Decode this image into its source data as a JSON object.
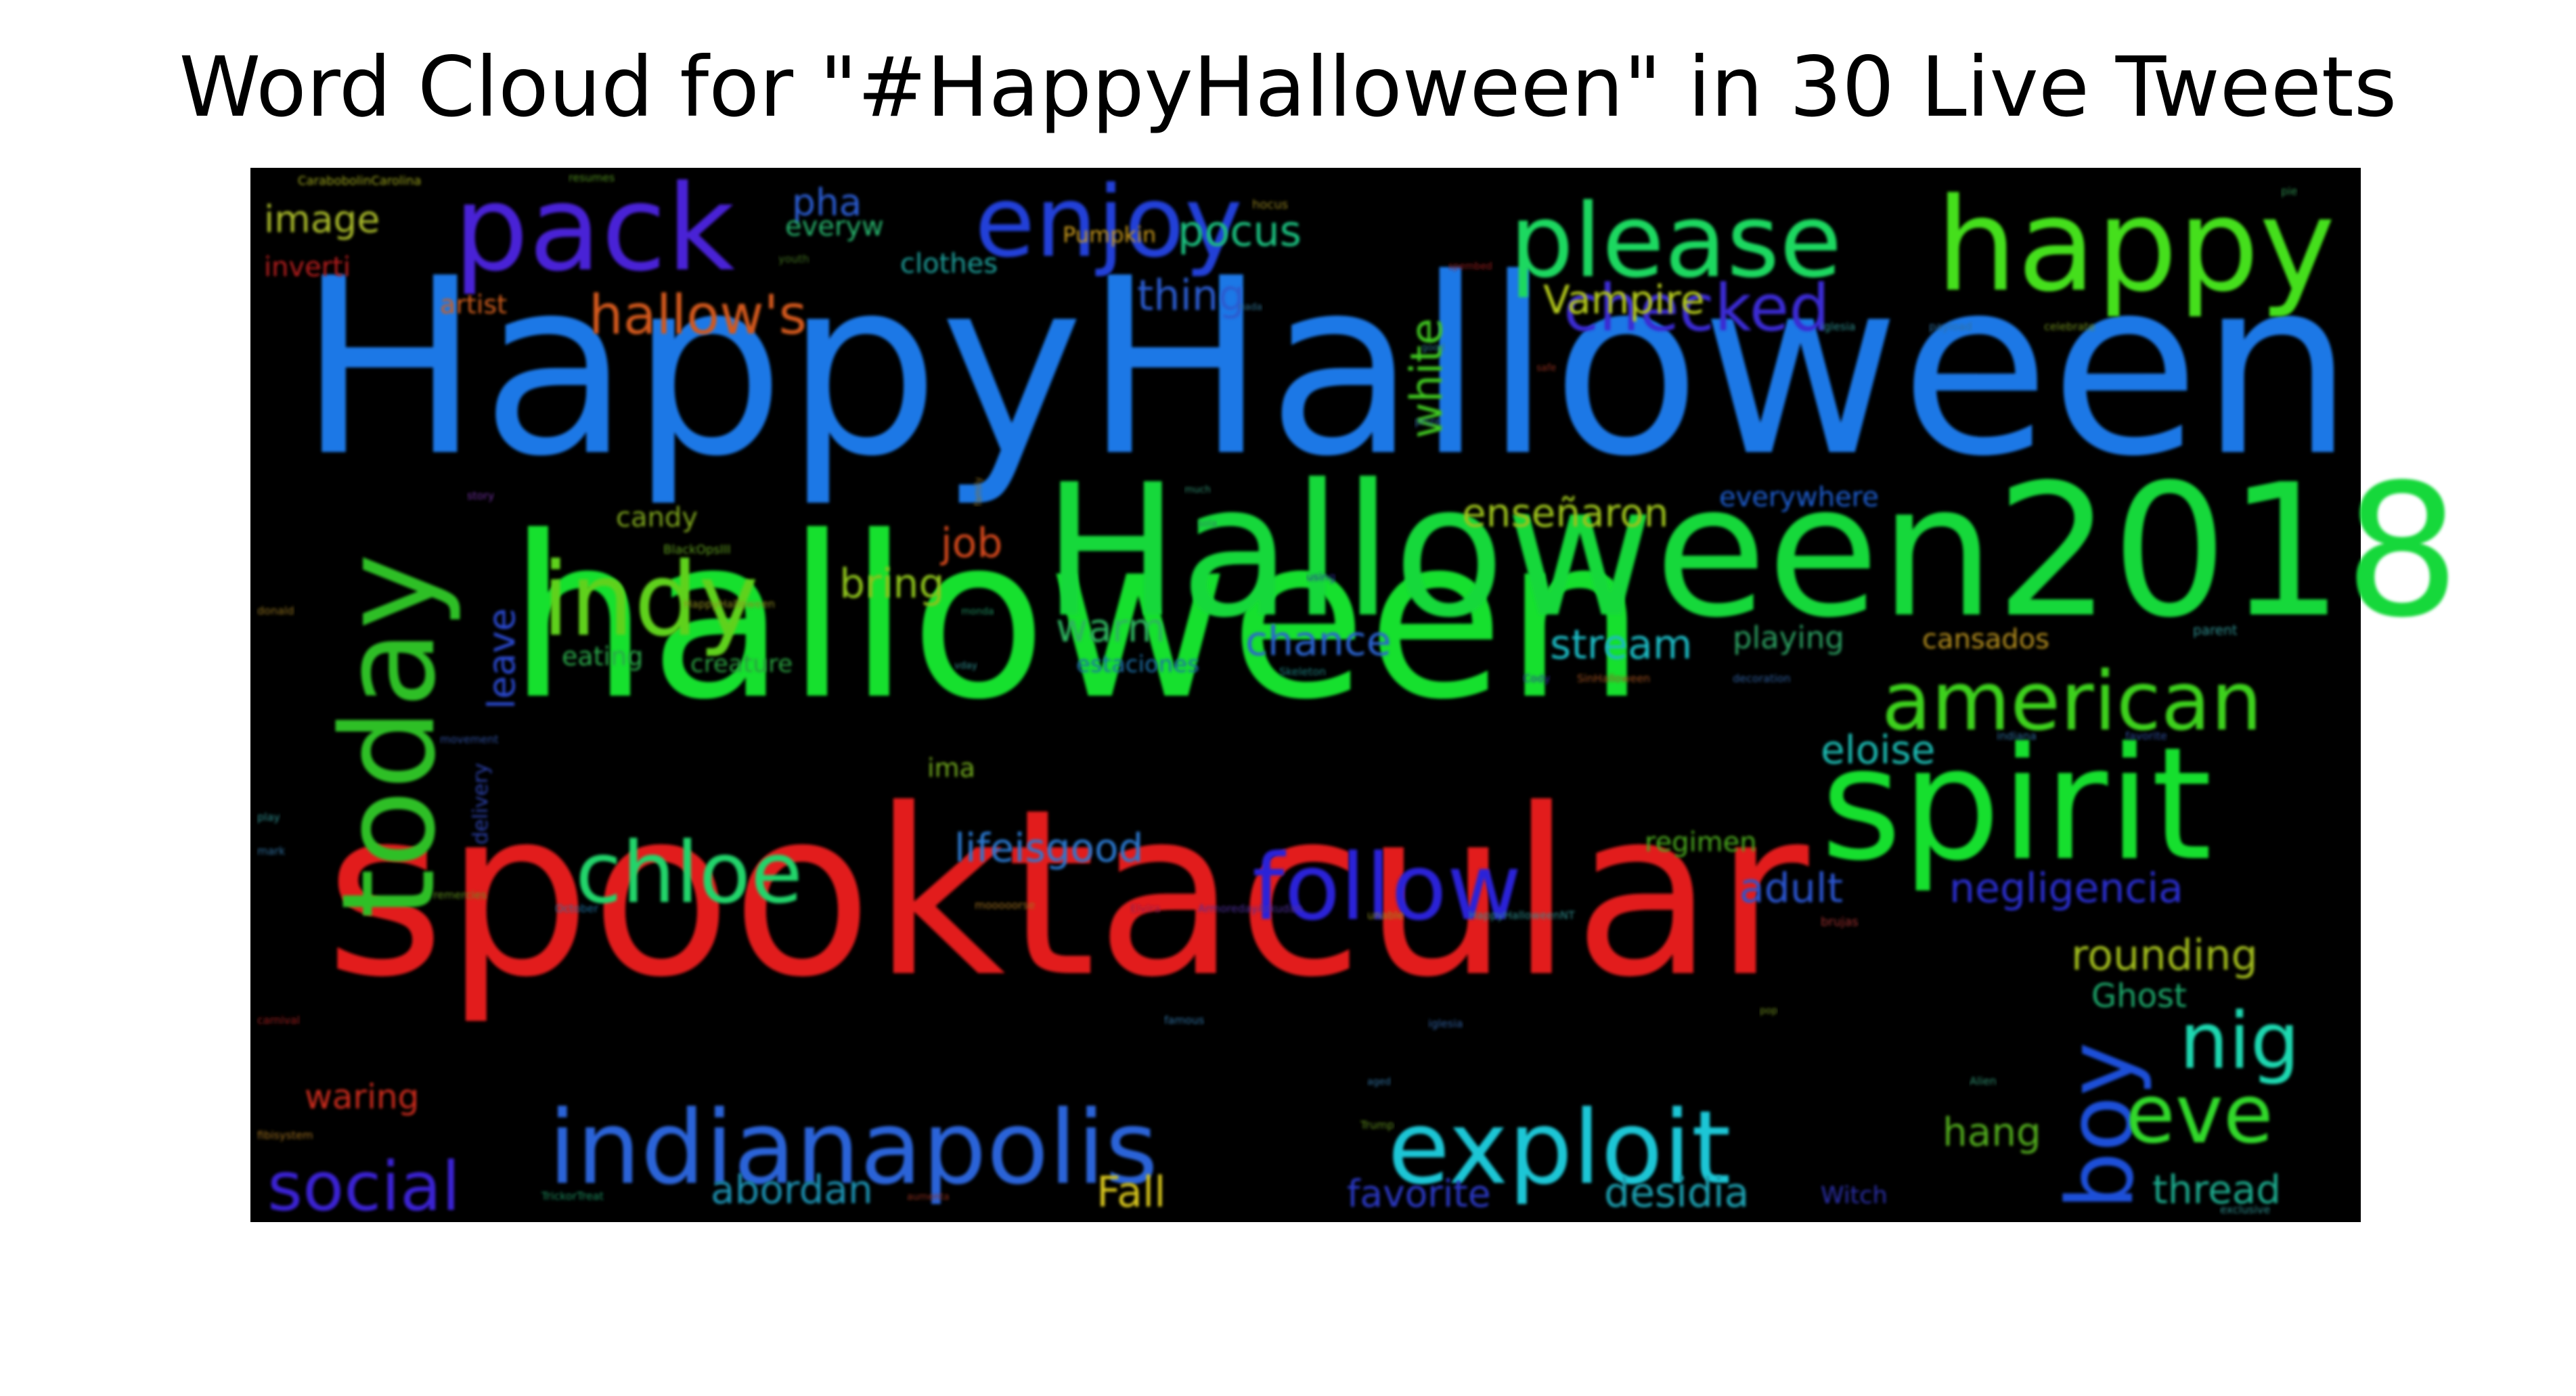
{
  "chart_data": {
    "type": "wordcloud",
    "title": "Word Cloud for \"#HappyHalloween\" in 30 Live Tweets",
    "background_color": "#000000",
    "words": [
      {
        "text": "HappyHalloween",
        "color": "#1a78e6"
      },
      {
        "text": "halloween",
        "color": "#18e02e"
      },
      {
        "text": "spooktacular",
        "color": "#e21b1b"
      },
      {
        "text": "Halloween2018",
        "color": "#18d83a"
      },
      {
        "text": "spirit",
        "color": "#18df2f"
      },
      {
        "text": "happy",
        "color": "#45df1c"
      },
      {
        "text": "today",
        "color": "#2fbf27"
      },
      {
        "text": "please",
        "color": "#1fd860"
      },
      {
        "text": "pack",
        "color": "#4a22d6"
      },
      {
        "text": "enjoy",
        "color": "#2140d8"
      },
      {
        "text": "indy",
        "color": "#5ed11f"
      },
      {
        "text": "indianapolis",
        "color": "#2a64d8"
      },
      {
        "text": "exploit",
        "color": "#1ec6d6"
      },
      {
        "text": "american",
        "color": "#3cd11f"
      },
      {
        "text": "follow",
        "color": "#2a23d8"
      },
      {
        "text": "chloe",
        "color": "#22d46a"
      },
      {
        "text": "boy",
        "color": "#1d4fd8"
      },
      {
        "text": "nig",
        "color": "#1dd8b0"
      },
      {
        "text": "eve",
        "color": "#30d82a"
      },
      {
        "text": "social",
        "color": "#3a22d2"
      },
      {
        "text": "checked",
        "color": "#3a2ad2"
      },
      {
        "text": "hallow's",
        "color": "#d2581c"
      },
      {
        "text": "white",
        "color": "#3fc620"
      },
      {
        "text": "pocus",
        "color": "#1abf7f"
      },
      {
        "text": "thing",
        "color": "#2a5bcf"
      },
      {
        "text": "Vampire",
        "color": "#b3c91f"
      },
      {
        "text": "pha",
        "color": "#2a5bcf"
      },
      {
        "text": "everyw",
        "color": "#28b06a"
      },
      {
        "text": "clothes",
        "color": "#1d9f9a"
      },
      {
        "text": "image",
        "color": "#a8b92a"
      },
      {
        "text": "inverti",
        "color": "#b51b1b"
      },
      {
        "text": "artist",
        "color": "#cf5d1c"
      },
      {
        "text": "Pumpkin",
        "color": "#c99a1e"
      },
      {
        "text": "enseñaron",
        "color": "#9cc21f"
      },
      {
        "text": "everywhere",
        "color": "#1f5dcf"
      },
      {
        "text": "job",
        "color": "#d0461c"
      },
      {
        "text": "bring",
        "color": "#8dc21f"
      },
      {
        "text": "chance",
        "color": "#2a63cf"
      },
      {
        "text": "stream",
        "color": "#1fb9c2"
      },
      {
        "text": "warm",
        "color": "#2fb35f"
      },
      {
        "text": "playing",
        "color": "#2a9b5f"
      },
      {
        "text": "cansados",
        "color": "#b38d1f"
      },
      {
        "text": "leave",
        "color": "#2a48cf"
      },
      {
        "text": "candy",
        "color": "#7da41f"
      },
      {
        "text": "eating",
        "color": "#2aa74a"
      },
      {
        "text": "creature",
        "color": "#2a9f3f"
      },
      {
        "text": "estaciones",
        "color": "#1f6fa7"
      },
      {
        "text": "eloise",
        "color": "#1fb9b0"
      },
      {
        "text": "ima",
        "color": "#6fa71f"
      },
      {
        "text": "lifeisgood",
        "color": "#2a78cf"
      },
      {
        "text": "regimen",
        "color": "#4aa71f"
      },
      {
        "text": "adult",
        "color": "#2a55cf"
      },
      {
        "text": "negligencia",
        "color": "#2a2fcf"
      },
      {
        "text": "rounding",
        "color": "#9fb91f"
      },
      {
        "text": "Ghost",
        "color": "#1fa76a"
      },
      {
        "text": "waring",
        "color": "#c92b1b"
      },
      {
        "text": "hang",
        "color": "#4fa71f"
      },
      {
        "text": "thread",
        "color": "#1fa78a"
      },
      {
        "text": "abordan",
        "color": "#1f8faf"
      },
      {
        "text": "Fall",
        "color": "#d4c21f"
      },
      {
        "text": "favorite",
        "color": "#2a38c2"
      },
      {
        "text": "desidia",
        "color": "#1f9faf"
      },
      {
        "text": "Witch",
        "color": "#2a2fa7"
      },
      {
        "text": "delivery",
        "color": "#2a3fa7"
      },
      {
        "text": "CarabobolinCarolina",
        "color": "#9fa71f"
      },
      {
        "text": "resumes",
        "color": "#4f8f1f"
      },
      {
        "text": "youth",
        "color": "#3f6f1f"
      },
      {
        "text": "hocus",
        "color": "#8f7f1f"
      },
      {
        "text": "nada",
        "color": "#2f6f8f"
      },
      {
        "text": "good",
        "color": "#2f7f8f"
      },
      {
        "text": "safe",
        "color": "#8f2f1f"
      },
      {
        "text": "spembed",
        "color": "#9f1f1f"
      },
      {
        "text": "iglesia",
        "color": "#2f8f8f"
      },
      {
        "text": "payload",
        "color": "#2f6f9f"
      },
      {
        "text": "celebrate",
        "color": "#6f8f1f"
      },
      {
        "text": "pie",
        "color": "#2f8f4f"
      },
      {
        "text": "story",
        "color": "#6f2f9f"
      },
      {
        "text": "prize",
        "color": "#2f5f9f"
      },
      {
        "text": "family",
        "color": "#8f6f1f"
      },
      {
        "text": "much",
        "color": "#2f8f6f"
      },
      {
        "text": "sola",
        "color": "#2f7f5f"
      },
      {
        "text": "BlackOpsIII",
        "color": "#5f9f1f"
      },
      {
        "text": "HappyHalloween",
        "color": "#8f8f1f"
      },
      {
        "text": "monda",
        "color": "#1f8f5f"
      },
      {
        "text": "donald",
        "color": "#8f6f1f"
      },
      {
        "text": "using",
        "color": "#2f2f9f"
      },
      {
        "text": "vday",
        "color": "#2f8f8f"
      },
      {
        "text": "Skeleton",
        "color": "#1f7f7f"
      },
      {
        "text": "Cody",
        "color": "#2f2f9f"
      },
      {
        "text": "SinHalloween",
        "color": "#9f4f1f"
      },
      {
        "text": "decoration",
        "color": "#2f5f9f"
      },
      {
        "text": "parent",
        "color": "#2f8f8f"
      },
      {
        "text": "movement",
        "color": "#2f4f9f"
      },
      {
        "text": "play",
        "color": "#2f8f8f"
      },
      {
        "text": "mark",
        "color": "#2f6f9f"
      },
      {
        "text": "indiana",
        "color": "#2f6f9f"
      },
      {
        "text": "favorite",
        "color": "#2f4f9f"
      },
      {
        "text": "remercies",
        "color": "#5f8f1f"
      },
      {
        "text": "October",
        "color": "#1f6f9f"
      },
      {
        "text": "mooooorse",
        "color": "#9f6f1f"
      },
      {
        "text": "Elvira",
        "color": "#8f1f4f"
      },
      {
        "text": "ArmoredayArkudan",
        "color": "#4f2f9f"
      },
      {
        "text": "unable",
        "color": "#8f8f1f"
      },
      {
        "text": "brujas",
        "color": "#9f2f2f"
      },
      {
        "text": "HappyHalloweenNT",
        "color": "#2f8f8f"
      },
      {
        "text": "carnival",
        "color": "#9f1f1f"
      },
      {
        "text": "famous",
        "color": "#2f6f9f"
      },
      {
        "text": "iglesia",
        "color": "#2f5f9f"
      },
      {
        "text": "pop",
        "color": "#6f8f1f"
      },
      {
        "text": "Alien",
        "color": "#2f8f6f"
      },
      {
        "text": "aged",
        "color": "#2f6f9f"
      },
      {
        "text": "Trump",
        "color": "#5f8f1f"
      },
      {
        "text": "fibisystem",
        "color": "#9f6f1f"
      },
      {
        "text": "TrickorTreat",
        "color": "#1f8f5f"
      },
      {
        "text": "aumenta",
        "color": "#8f2f1f"
      },
      {
        "text": "exclusive",
        "color": "#2f8f8f"
      }
    ]
  }
}
